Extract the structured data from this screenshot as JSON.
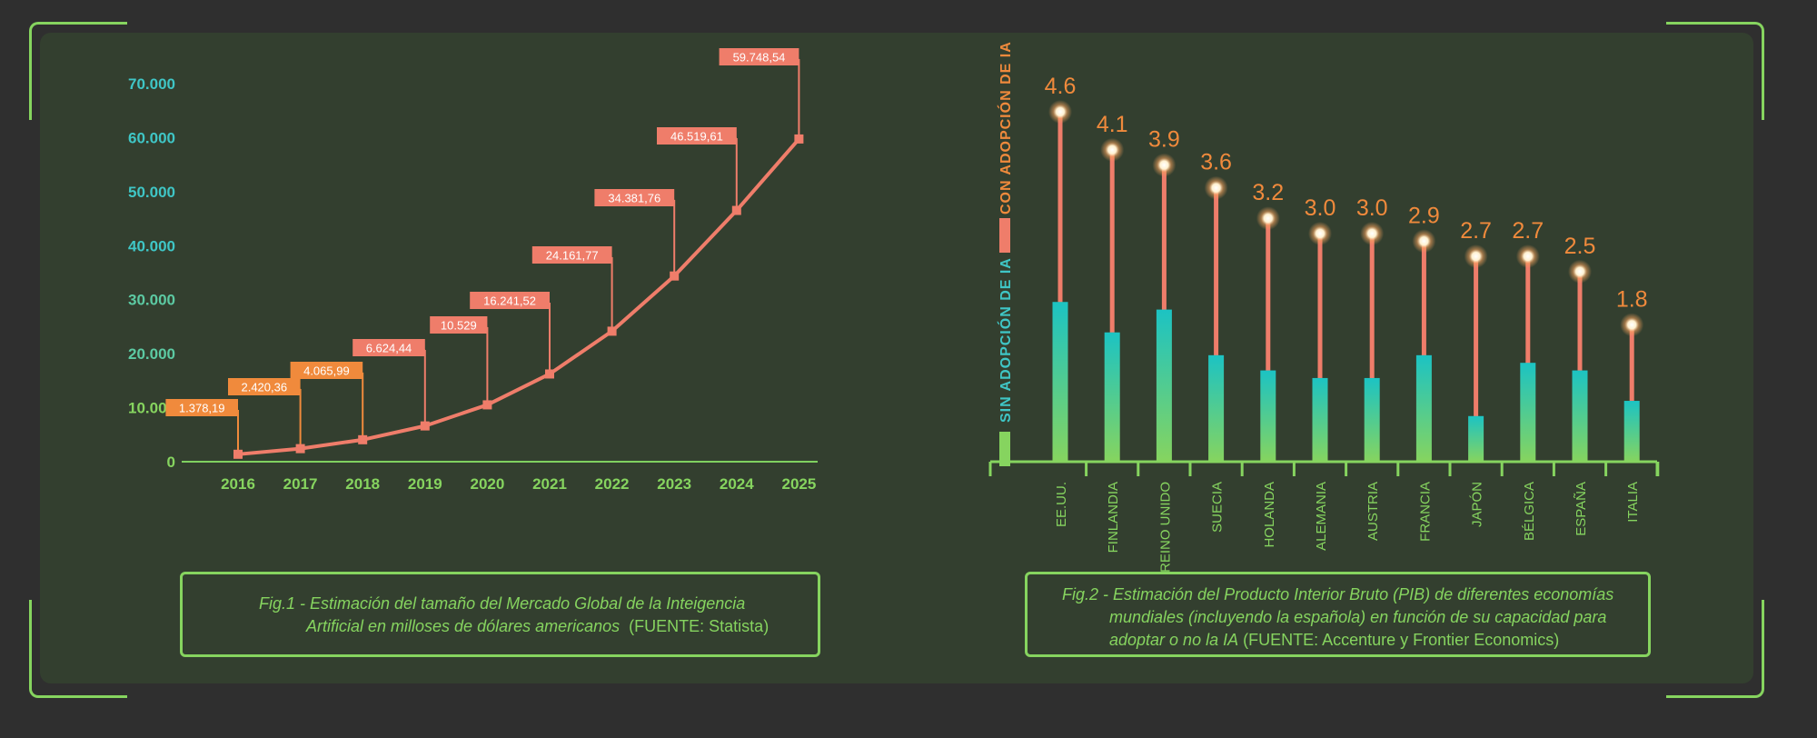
{
  "charts": {
    "left": {
      "caption_italic_1": "Fig.1 - Estimación del tamaño del Mercado Global de la Inteigencia",
      "caption_italic_2": "Artificial en milloses de dólares americanos",
      "caption_source": "(FUENTE: Statista)"
    },
    "right": {
      "caption_italic_1": "Fig.2 - Estimación del Producto Interior Bruto (PIB) de diferentes economías",
      "caption_italic_2": "mundiales (incluyendo la española) en función de su capacidad para",
      "caption_italic_3": "adoptar o no la IA",
      "caption_source": "(FUENTE: Accenture y Frontier Economics)"
    }
  },
  "colors": {
    "background": "#2f2f2f",
    "panel": "#333f2f",
    "green": "#86d45f",
    "teal": "#3fc6c6",
    "salmon": "#ef7d6a",
    "orange": "#f08a3c"
  },
  "chart_data": [
    {
      "type": "line",
      "categories": [
        "2016",
        "2017",
        "2018",
        "2019",
        "2020",
        "2021",
        "2022",
        "2023",
        "2024",
        "2025"
      ],
      "values": [
        1378.19,
        2420.36,
        4065.99,
        6624.44,
        10529,
        16241.52,
        24161.77,
        34381.76,
        46519.61,
        59748.54
      ],
      "data_labels": [
        "1.378,19",
        "2.420,36",
        "4.065,99",
        "6.624,44",
        "10.529",
        "16.241,52",
        "24.161,77",
        "34.381,76",
        "46.519,61",
        "59.748,54"
      ],
      "y_ticks": [
        0,
        10000,
        20000,
        30000,
        40000,
        50000,
        60000,
        70000
      ],
      "y_tick_labels": [
        "0",
        "10.000",
        "20.000",
        "30.000",
        "40.000",
        "50.000",
        "60.000",
        "70.000"
      ],
      "ylim": [
        0,
        70000
      ],
      "grid": true
    },
    {
      "type": "bar",
      "categories": [
        "EE.UU.",
        "FINLANDIA",
        "REINO UNIDO",
        "SUECIA",
        "HOLANDA",
        "ALEMANIA",
        "AUSTRIA",
        "FRANCIA",
        "JAPÓN",
        "BÉLGICA",
        "ESPAÑA",
        "ITALIA"
      ],
      "series": [
        {
          "name": "SIN ADOPCIÓN DE IA",
          "values": [
            2.1,
            1.7,
            2.0,
            1.4,
            1.2,
            1.1,
            1.1,
            1.4,
            0.6,
            1.3,
            1.2,
            0.8
          ]
        },
        {
          "name": "CON ADOPCIÓN DE IA",
          "values": [
            4.6,
            4.1,
            3.9,
            3.6,
            3.2,
            3.0,
            3.0,
            2.9,
            2.7,
            2.7,
            2.5,
            1.8
          ]
        }
      ],
      "data_labels": [
        "4.6",
        "4.1",
        "3.9",
        "3.6",
        "3.2",
        "3.0",
        "3.0",
        "2.9",
        "2.7",
        "2.7",
        "2.5",
        "1.8"
      ],
      "legend_position": "left-vertical",
      "ylim": [
        0,
        4.6
      ]
    }
  ]
}
